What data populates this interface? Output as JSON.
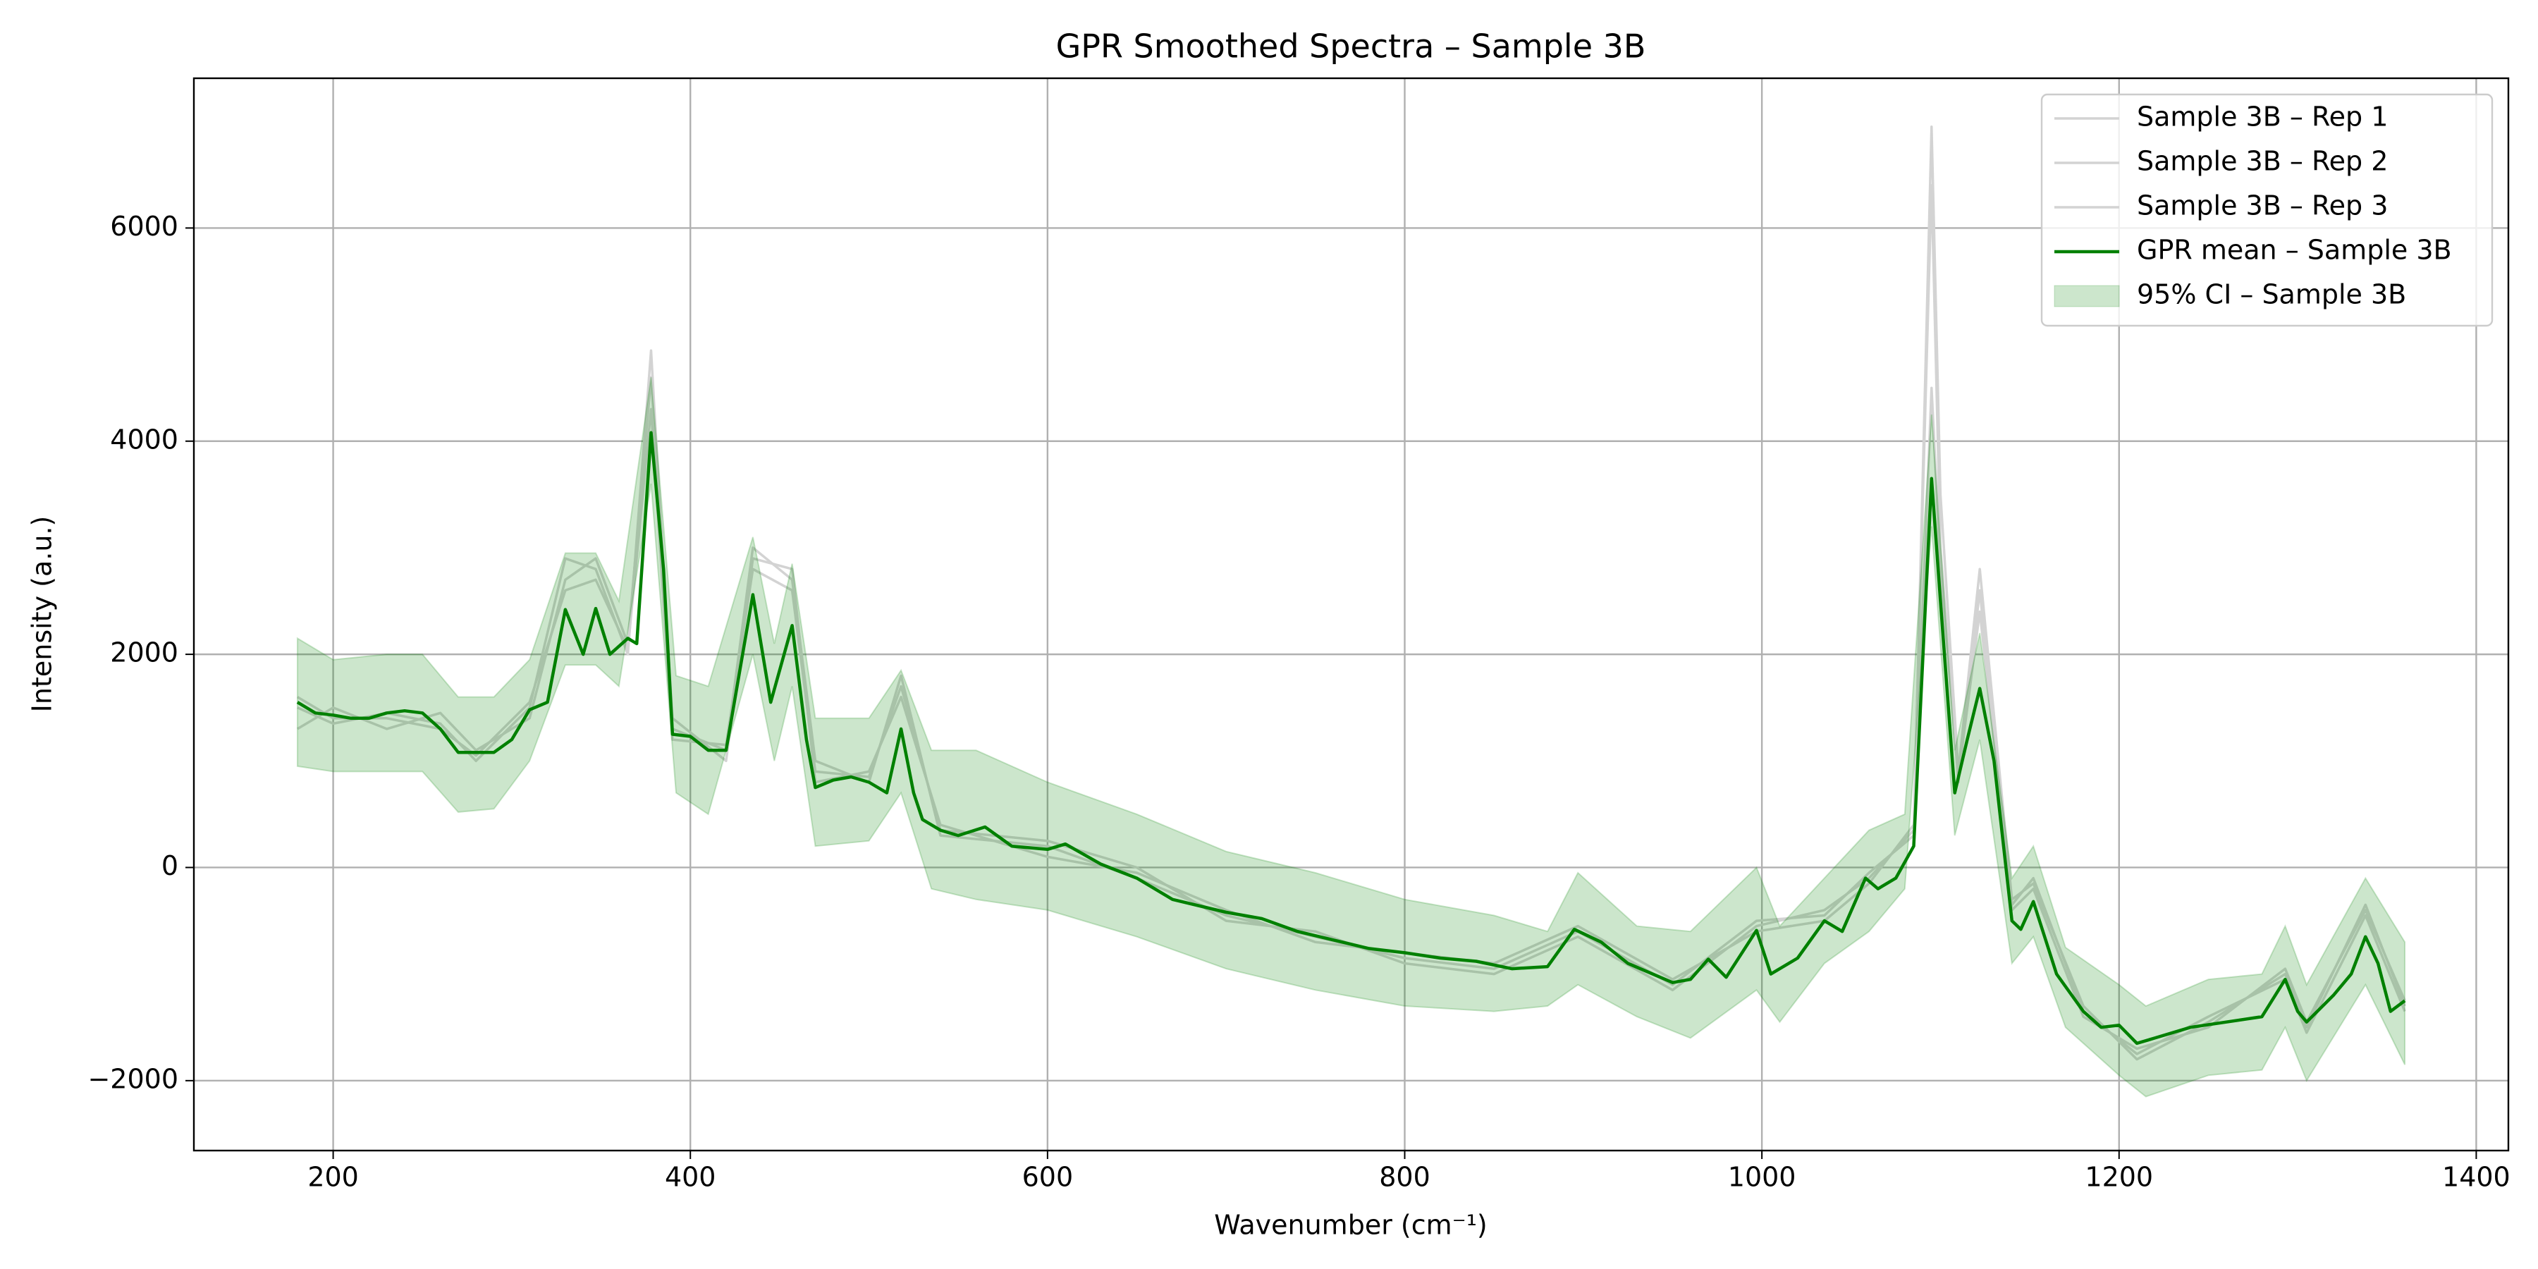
{
  "chart_data": {
    "type": "line",
    "title": "GPR Smoothed Spectra – Sample 3B",
    "x_label": "Wavenumber (cm⁻¹)",
    "y_label": "Intensity (a.u.)",
    "xlim": [
      122,
      1418
    ],
    "ylim": [
      -2656,
      7405
    ],
    "xticks": [
      200,
      400,
      600,
      800,
      1000,
      1200,
      1400
    ],
    "yticks": [
      {
        "value": -2000,
        "label": "−2000"
      },
      0,
      2000,
      4000,
      6000
    ],
    "grid": true,
    "legend": "upper right",
    "series": [
      {
        "name": "Sample 3B – Rep 1",
        "color": "#d3d3d3",
        "x": [
          180,
          200,
          230,
          260,
          280,
          310,
          330,
          347,
          365,
          378,
          390,
          420,
          435,
          457,
          470,
          500,
          518,
          540,
          600,
          650,
          700,
          750,
          800,
          850,
          897,
          950,
          997,
          1035,
          1060,
          1085,
          1095,
          1100,
          1110,
          1122,
          1140,
          1152,
          1180,
          1210,
          1250,
          1293,
          1305,
          1338,
          1360
        ],
        "values": [
          1500,
          1350,
          1450,
          1350,
          1000,
          1500,
          2900,
          2800,
          2000,
          4850,
          1300,
          1100,
          3000,
          2700,
          1000,
          800,
          1800,
          300,
          200,
          -100,
          -450,
          -650,
          -850,
          -950,
          -600,
          -1100,
          -500,
          -450,
          -50,
          300,
          6950,
          3500,
          900,
          2800,
          -300,
          -150,
          -1300,
          -1800,
          -1450,
          -1000,
          -1500,
          -350,
          -1300
        ]
      },
      {
        "name": "Sample 3B – Rep 2",
        "color": "#d3d3d3",
        "x": [
          180,
          200,
          230,
          260,
          280,
          310,
          330,
          347,
          365,
          378,
          390,
          420,
          435,
          457,
          470,
          500,
          518,
          540,
          600,
          650,
          700,
          750,
          800,
          850,
          897,
          950,
          997,
          1035,
          1060,
          1085,
          1095,
          1100,
          1110,
          1122,
          1140,
          1152,
          1180,
          1210,
          1250,
          1293,
          1305,
          1338,
          1360
        ],
        "values": [
          1300,
          1500,
          1300,
          1450,
          1100,
          1400,
          2700,
          2900,
          2100,
          4600,
          1400,
          1000,
          2900,
          2800,
          800,
          900,
          1600,
          400,
          100,
          -50,
          -400,
          -700,
          -800,
          -900,
          -550,
          -1050,
          -600,
          -500,
          -150,
          400,
          6400,
          3000,
          800,
          2600,
          -400,
          -200,
          -1400,
          -1700,
          -1500,
          -950,
          -1450,
          -400,
          -1250
        ]
      },
      {
        "name": "Sample 3B – Rep 3",
        "color": "#d3d3d3",
        "x": [
          180,
          200,
          230,
          260,
          280,
          310,
          330,
          347,
          365,
          378,
          390,
          420,
          435,
          457,
          470,
          500,
          518,
          540,
          600,
          650,
          700,
          750,
          800,
          850,
          897,
          950,
          997,
          1035,
          1060,
          1085,
          1095,
          1100,
          1110,
          1122,
          1140,
          1152,
          1180,
          1210,
          1250,
          1293,
          1305,
          1338,
          1360
        ],
        "values": [
          1600,
          1400,
          1400,
          1300,
          1050,
          1550,
          2600,
          2700,
          2050,
          4300,
          1200,
          1150,
          2800,
          2600,
          900,
          850,
          1700,
          350,
          250,
          0,
          -500,
          -600,
          -900,
          -1000,
          -650,
          -1150,
          -550,
          -400,
          -100,
          350,
          4500,
          2800,
          850,
          2400,
          -350,
          -100,
          -1350,
          -1750,
          -1400,
          -1050,
          -1550,
          -450,
          -1350
        ]
      },
      {
        "name": "GPR mean – Sample 3B",
        "color": "#008000",
        "x": [
          180,
          190,
          200,
          210,
          220,
          230,
          240,
          250,
          260,
          270,
          280,
          290,
          300,
          310,
          320,
          330,
          340,
          347,
          355,
          365,
          370,
          378,
          385,
          390,
          400,
          410,
          420,
          435,
          445,
          457,
          465,
          470,
          480,
          490,
          500,
          510,
          518,
          525,
          530,
          540,
          550,
          565,
          580,
          600,
          610,
          630,
          650,
          670,
          700,
          720,
          740,
          760,
          780,
          800,
          820,
          840,
          860,
          880,
          895,
          910,
          925,
          950,
          960,
          970,
          980,
          997,
          1005,
          1020,
          1035,
          1045,
          1058,
          1065,
          1075,
          1085,
          1095,
          1100,
          1108,
          1115,
          1122,
          1130,
          1140,
          1145,
          1152,
          1165,
          1180,
          1190,
          1200,
          1210,
          1220,
          1240,
          1260,
          1280,
          1293,
          1300,
          1305,
          1320,
          1330,
          1338,
          1345,
          1352,
          1360
        ],
        "values": [
          1550,
          1450,
          1430,
          1400,
          1400,
          1450,
          1470,
          1450,
          1300,
          1080,
          1080,
          1080,
          1200,
          1480,
          1550,
          2420,
          2000,
          2430,
          2000,
          2150,
          2100,
          4080,
          2800,
          1250,
          1230,
          1100,
          1100,
          2560,
          1550,
          2270,
          1200,
          750,
          820,
          850,
          800,
          700,
          1300,
          700,
          450,
          350,
          300,
          380,
          200,
          170,
          220,
          30,
          -100,
          -300,
          -420,
          -480,
          -600,
          -680,
          -760,
          -800,
          -850,
          -880,
          -950,
          -930,
          -580,
          -700,
          -900,
          -1080,
          -1050,
          -860,
          -1030,
          -590,
          -1000,
          -850,
          -500,
          -600,
          -100,
          -200,
          -100,
          200,
          3650,
          2500,
          700,
          1200,
          1680,
          1000,
          -500,
          -580,
          -320,
          -1000,
          -1350,
          -1500,
          -1480,
          -1650,
          -1600,
          -1500,
          -1450,
          -1400,
          -1050,
          -1350,
          -1450,
          -1200,
          -1000,
          -650,
          -900,
          -1350,
          -1250
        ]
      }
    ],
    "band": {
      "name": "95% CI – Sample 3B",
      "color": "rgba(0, 128, 0, 0.2)",
      "x": [
        180,
        200,
        230,
        250,
        270,
        290,
        310,
        330,
        347,
        360,
        378,
        392,
        410,
        435,
        447,
        457,
        470,
        500,
        518,
        535,
        560,
        600,
        650,
        700,
        750,
        800,
        850,
        880,
        897,
        930,
        960,
        997,
        1010,
        1035,
        1060,
        1080,
        1095,
        1108,
        1122,
        1140,
        1152,
        1170,
        1200,
        1215,
        1250,
        1280,
        1293,
        1305,
        1338,
        1360
      ],
      "lower": [
        950,
        900,
        900,
        900,
        520,
        550,
        1000,
        1900,
        1900,
        1700,
        3600,
        700,
        500,
        2000,
        1000,
        1700,
        200,
        250,
        700,
        -200,
        -300,
        -400,
        -650,
        -950,
        -1150,
        -1300,
        -1350,
        -1300,
        -1100,
        -1400,
        -1600,
        -1150,
        -1450,
        -900,
        -600,
        -200,
        3200,
        300,
        1200,
        -900,
        -650,
        -1500,
        -1950,
        -2150,
        -1950,
        -1900,
        -1500,
        -2000,
        -1100,
        -1850
      ],
      "upper": [
        2150,
        1950,
        2000,
        2000,
        1600,
        1600,
        1950,
        2950,
        2950,
        2500,
        4600,
        1800,
        1700,
        3100,
        2100,
        2850,
        1400,
        1400,
        1850,
        1100,
        1100,
        800,
        500,
        150,
        -50,
        -300,
        -450,
        -600,
        -50,
        -550,
        -600,
        0,
        -550,
        -100,
        350,
        500,
        4250,
        1100,
        2200,
        -100,
        200,
        -750,
        -1100,
        -1300,
        -1050,
        -1000,
        -550,
        -1100,
        -100,
        -700
      ]
    }
  }
}
